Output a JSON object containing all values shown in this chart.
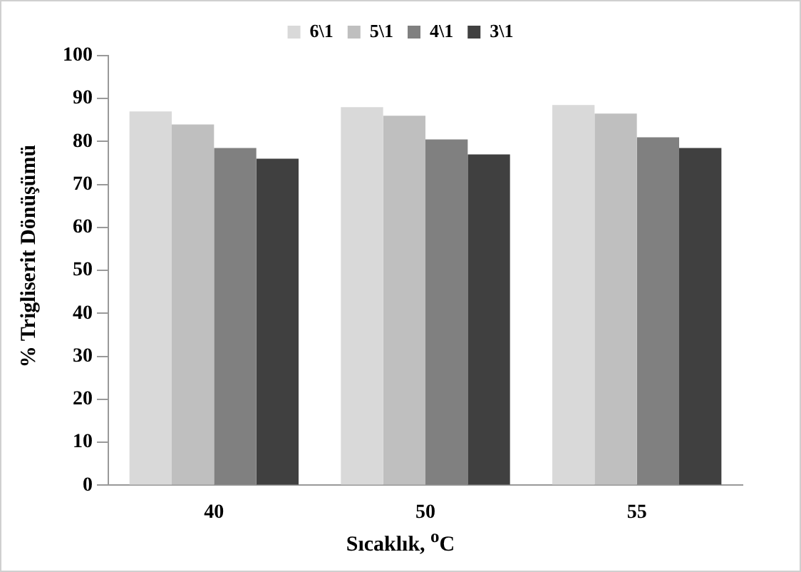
{
  "chart_data": {
    "type": "bar",
    "xlabel": "Sıcaklık, $^{o}$C",
    "ylabel": "% Trigliserit Dönüşümü",
    "categories": [
      "40",
      "50",
      "55"
    ],
    "series": [
      {
        "name": "6\\1",
        "color": "#d9d9d9",
        "values": [
          87,
          88,
          88.5
        ]
      },
      {
        "name": "5\\1",
        "color": "#bfbfbf",
        "values": [
          84,
          86,
          86.5
        ]
      },
      {
        "name": "4\\1",
        "color": "#808080",
        "values": [
          78.5,
          80.5,
          81
        ]
      },
      {
        "name": "3\\1",
        "color": "#404040",
        "values": [
          76,
          77,
          78.5
        ]
      }
    ],
    "ylim": [
      0,
      100
    ],
    "yticks": [
      0,
      10,
      20,
      30,
      40,
      50,
      60,
      70,
      80,
      90,
      100
    ],
    "grid": false,
    "legend": "top"
  }
}
